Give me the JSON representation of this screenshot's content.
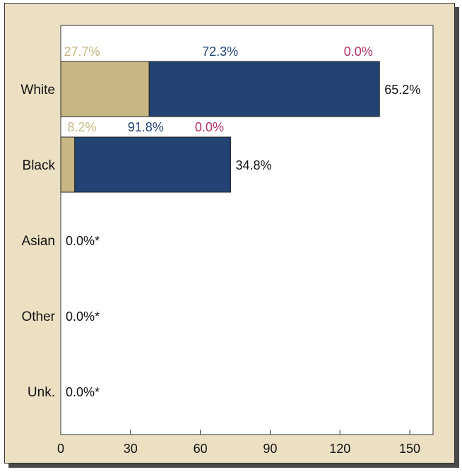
{
  "chart_data": {
    "type": "bar",
    "orientation": "horizontal",
    "stacked": true,
    "categories": [
      "White",
      "Black",
      "Asian",
      "Other",
      "Unk."
    ],
    "values": [
      137,
      73,
      0,
      0,
      0
    ],
    "total_labels": [
      "65.2%",
      "34.8%",
      "0.0%*",
      "0.0%*",
      "0.0%*"
    ],
    "segments": [
      {
        "color": "#c8b784",
        "values": [
          38,
          6,
          0,
          0,
          0
        ],
        "labels": [
          "27.7%",
          "8.2%",
          "",
          "",
          ""
        ]
      },
      {
        "color": "#224373",
        "values": [
          99,
          67,
          0,
          0,
          0
        ],
        "labels": [
          "72.3%",
          "91.8%",
          "",
          "",
          ""
        ]
      },
      {
        "color": "#b03060",
        "values": [
          0,
          0,
          0,
          0,
          0
        ],
        "labels": [
          "0.0%",
          "0.0%",
          "",
          "",
          ""
        ]
      }
    ],
    "xlim": [
      0,
      160
    ],
    "xticks": [
      0,
      30,
      60,
      90,
      120,
      150
    ],
    "grid": false,
    "colors": {
      "background": "#ece0c3",
      "plot": "#ffffff",
      "text": "#111111"
    }
  }
}
